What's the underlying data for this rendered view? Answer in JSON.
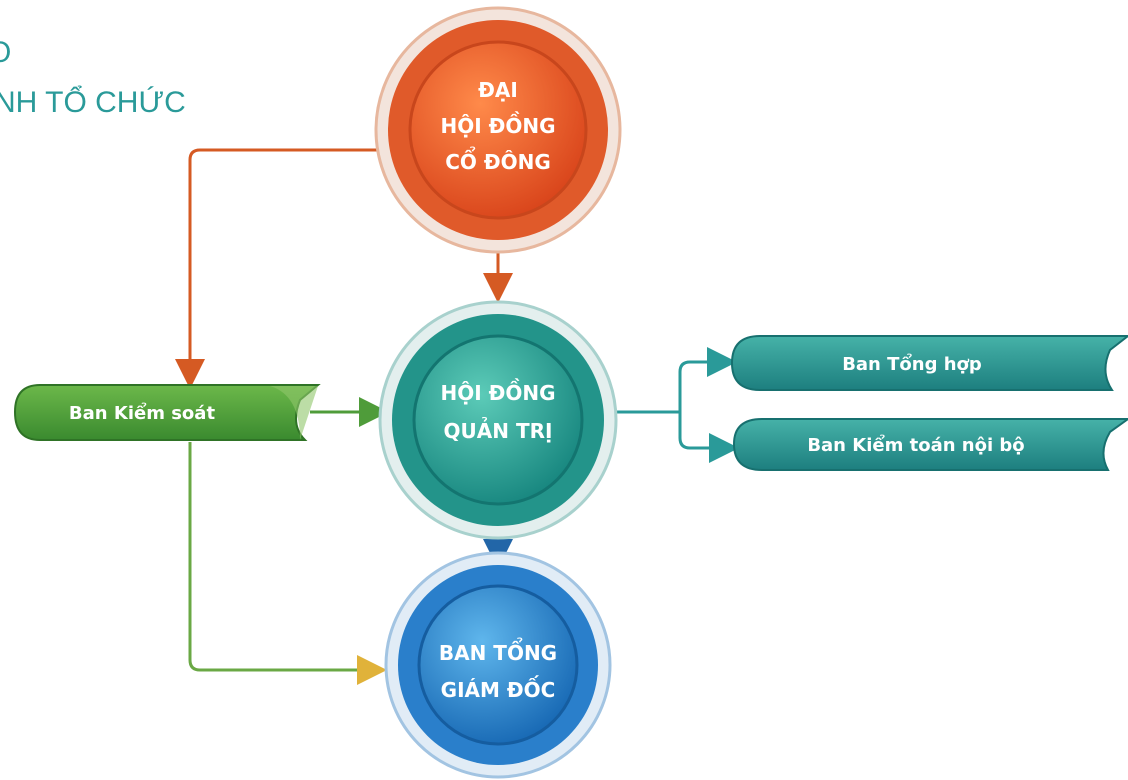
{
  "title": {
    "lines": [
      "O",
      "NH TỔ CHỨC"
    ]
  },
  "nodes": [
    {
      "lines": [
        "ĐẠI",
        "HỘI ĐỒNG",
        "CỔ ĐÔNG"
      ]
    },
    {
      "lines": [
        "HỘI ĐỒNG",
        "QUẢN TRỊ"
      ]
    },
    {
      "lines": [
        "BAN TỔNG",
        "GIÁM ĐỐC"
      ]
    }
  ],
  "ribbons": [
    {
      "label": "Ban Kiểm soát"
    },
    {
      "label": "Ban Tổng hợp"
    },
    {
      "label": "Ban Kiểm toán nội bộ"
    }
  ]
}
